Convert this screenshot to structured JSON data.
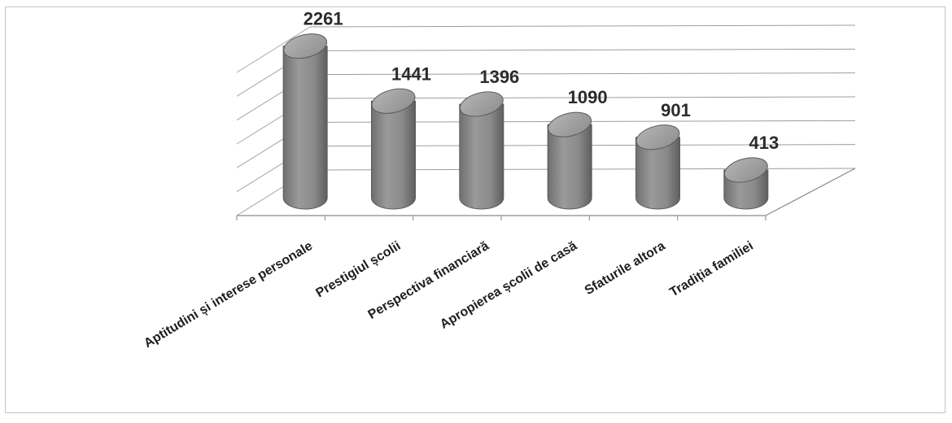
{
  "chart_data": {
    "type": "bar",
    "style": "3d-cylinder",
    "categories": [
      "Aptitudini și interese personale",
      "Prestigiul școlii",
      "Perspectiva financiară",
      "Apropierea școlii de casă",
      "Sfaturile altora",
      "Tradiția familiei"
    ],
    "values": [
      2261,
      1441,
      1396,
      1090,
      901,
      413
    ],
    "title": "",
    "xlabel": "",
    "ylabel": "",
    "ylim": [
      0,
      2500
    ],
    "grid": true,
    "legend": "none",
    "bar_color": "#8c8c8c"
  }
}
